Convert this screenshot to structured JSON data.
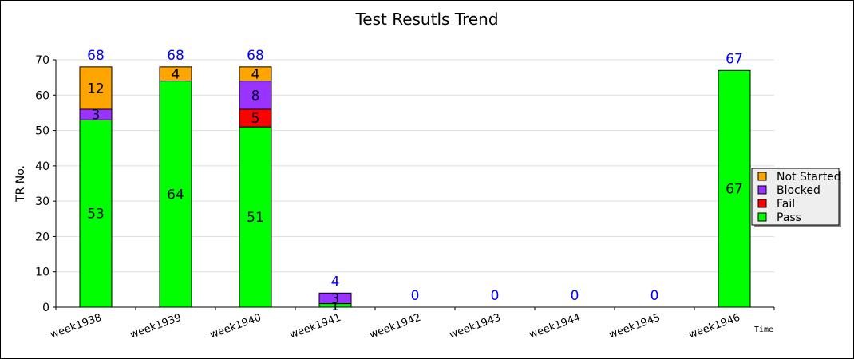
{
  "chart_data": {
    "type": "bar",
    "stacked": true,
    "title": "Test Resutls Trend",
    "ylabel": "TR No.",
    "xlabel": "Time",
    "ylim": [
      0,
      70
    ],
    "yticks": [
      0,
      10,
      20,
      30,
      40,
      50,
      60,
      70
    ],
    "grid": true,
    "legend_placement": "right",
    "categories": [
      "week1938",
      "week1939",
      "week1940",
      "week1941",
      "week1942",
      "week1943",
      "week1944",
      "week1945",
      "week1946"
    ],
    "series": [
      {
        "name": "Pass",
        "color": "#00ff00",
        "values": [
          53,
          64,
          51,
          1,
          0,
          0,
          0,
          0,
          67
        ]
      },
      {
        "name": "Fail",
        "color": "#ff0000",
        "values": [
          0,
          0,
          5,
          0,
          0,
          0,
          0,
          0,
          0
        ]
      },
      {
        "name": "Blocked",
        "color": "#9933ff",
        "values": [
          3,
          0,
          8,
          3,
          0,
          0,
          0,
          0,
          0
        ]
      },
      {
        "name": "Not Started",
        "color": "#ffa500",
        "values": [
          12,
          4,
          4,
          0,
          0,
          0,
          0,
          0,
          0
        ]
      }
    ],
    "totals": [
      68,
      68,
      68,
      4,
      0,
      0,
      0,
      0,
      67
    ],
    "legend_order": [
      "Not Started",
      "Blocked",
      "Fail",
      "Pass"
    ],
    "total_label_color": "#0000ff"
  }
}
